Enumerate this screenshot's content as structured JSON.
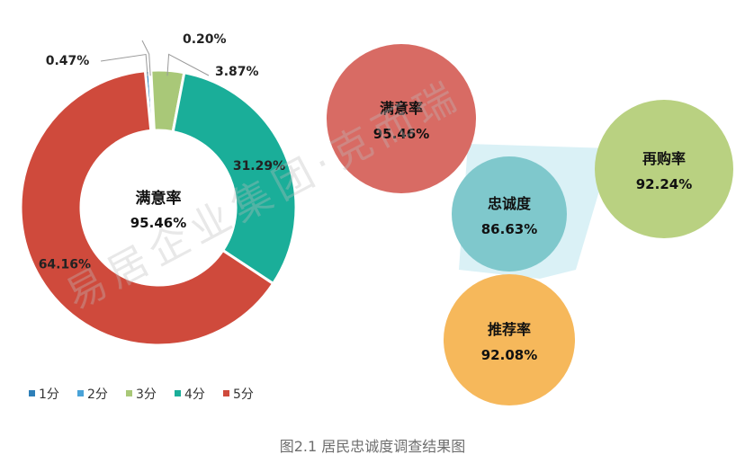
{
  "chart_data": [
    {
      "type": "pie",
      "center_label": "满意率",
      "center_value": "95.46%",
      "slices": [
        {
          "name": "1分",
          "value": 0.47,
          "label": "0.47%",
          "color": "#2e7fb8"
        },
        {
          "name": "2分",
          "value": 0.2,
          "label": "0.20%",
          "color": "#4aa3d8"
        },
        {
          "name": "3分",
          "value": 3.87,
          "label": "3.87%",
          "color": "#a9c878"
        },
        {
          "name": "4分",
          "value": 31.29,
          "label": "31.29%",
          "color": "#1aae99"
        },
        {
          "name": "5分",
          "value": 64.16,
          "label": "64.16%",
          "color": "#cf4a3c"
        }
      ],
      "legend": [
        "1分",
        "2分",
        "3分",
        "4分",
        "5分"
      ],
      "legend_placement": "bottom"
    },
    {
      "type": "bubble",
      "bubbles": [
        {
          "label": "满意率",
          "value": "95.46%",
          "color": "#d86b64"
        },
        {
          "label": "忠诚度",
          "value": "86.63%",
          "color": "#7fc8cc"
        },
        {
          "label": "再购率",
          "value": "92.24%",
          "color": "#b9d181"
        },
        {
          "label": "推荐率",
          "value": "92.08%",
          "color": "#f6b85b"
        }
      ]
    }
  ],
  "caption": "图2.1 居民忠诚度调查结果图",
  "watermark": "易居企业集团·克而瑞"
}
